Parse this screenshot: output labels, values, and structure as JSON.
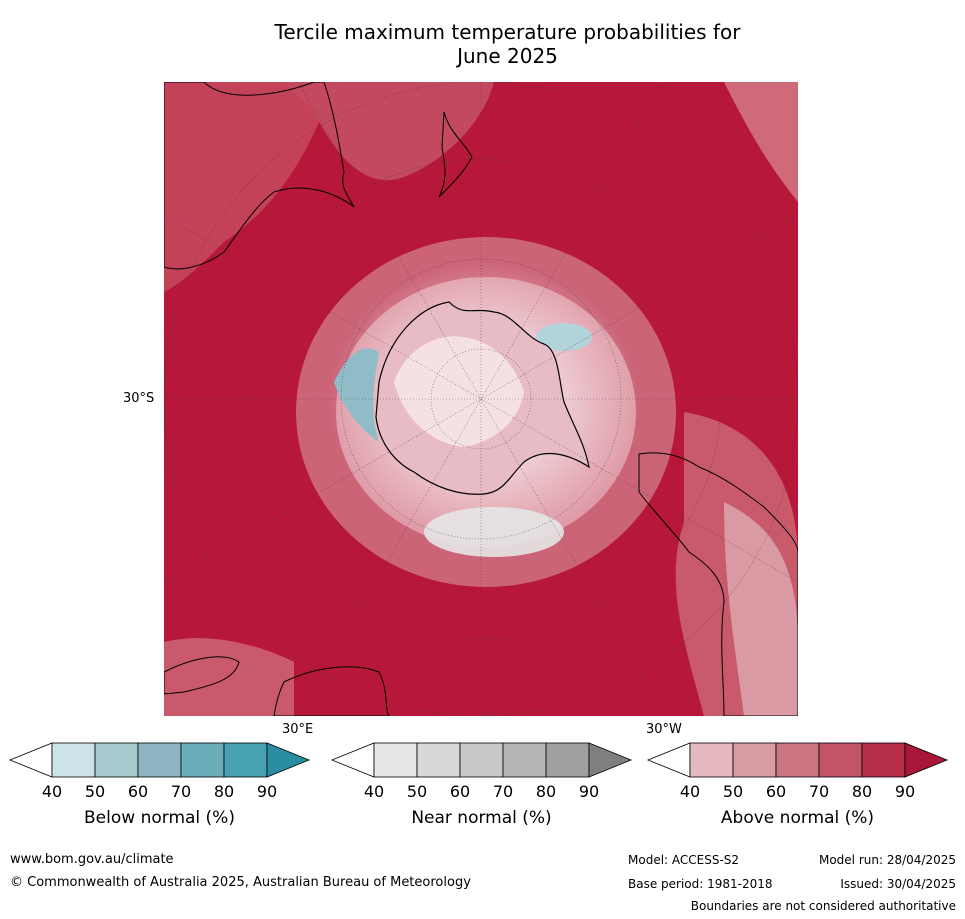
{
  "title_line1": "Tercile maximum temperature probabilities for",
  "title_line2": "June 2025",
  "map": {
    "lat_label": "30°S",
    "lon_label_east": "30°E",
    "lon_label_west": "30°W",
    "projection": "south polar stereographic"
  },
  "colorbars": [
    {
      "label": "Below normal (%)",
      "ticks": [
        "40",
        "50",
        "60",
        "70",
        "80",
        "90"
      ],
      "colors": [
        "#ffffff",
        "#cce3ea",
        "#a7c8cf",
        "#8db5c1",
        "#6aadb9",
        "#46a2b1",
        "#2b8da0"
      ]
    },
    {
      "label": "Near normal (%)",
      "ticks": [
        "40",
        "50",
        "60",
        "70",
        "80",
        "90"
      ],
      "colors": [
        "#ffffff",
        "#e6e6e6",
        "#d8d8d8",
        "#c9c9c9",
        "#b6b6b6",
        "#a0a0a0",
        "#7f7f7f"
      ]
    },
    {
      "label": "Above normal (%)",
      "ticks": [
        "40",
        "50",
        "60",
        "70",
        "80",
        "90"
      ],
      "colors": [
        "#ffffff",
        "#e6b9bf",
        "#d89aa3",
        "#cc7582",
        "#c25466",
        "#b62e48",
        "#a8173a"
      ]
    }
  ],
  "footer": {
    "website": "www.bom.gov.au/climate",
    "copyright": "© Commonwealth of Australia 2025, Australian Bureau of Meteorology",
    "model": "Model: ACCESS-S2",
    "base_period": "Base period: 1981-2018",
    "model_run": "Model run: 28/04/2025",
    "issued": "Issued: 30/04/2025",
    "disclaimer": "Boundaries are not considered authoritative"
  }
}
